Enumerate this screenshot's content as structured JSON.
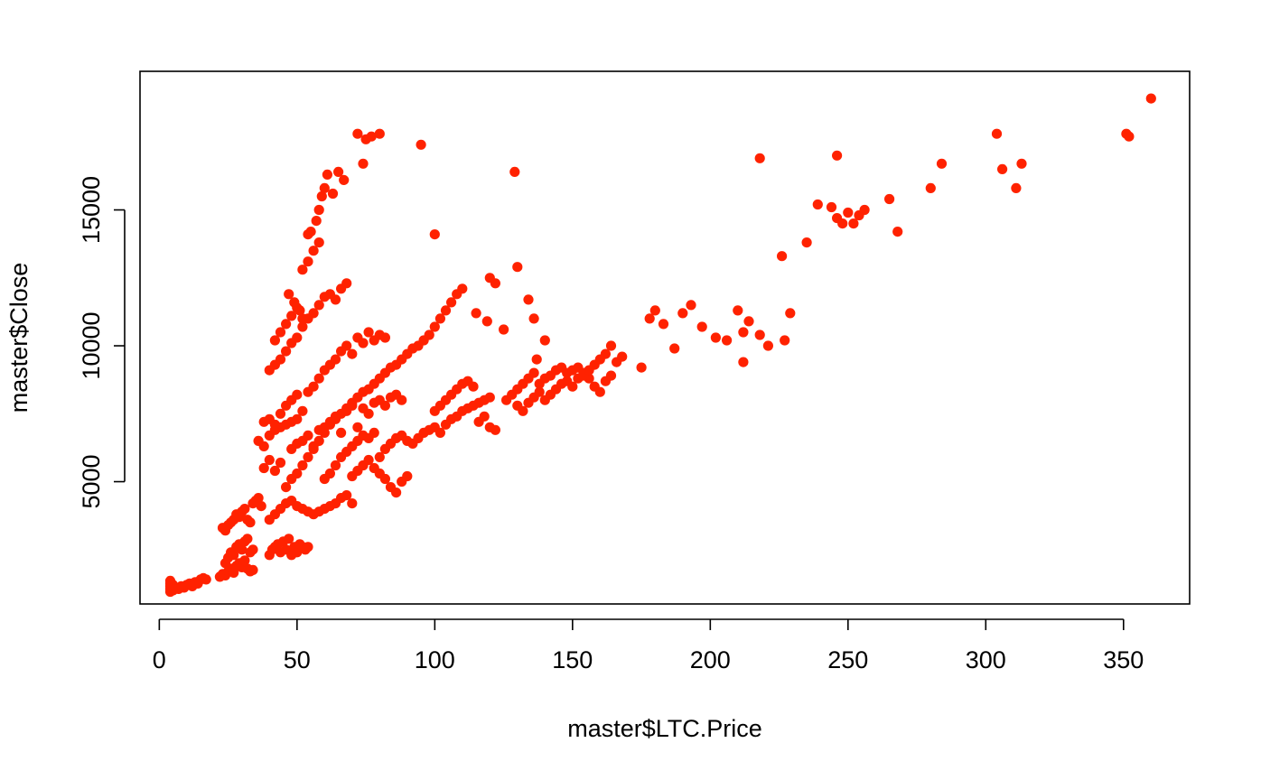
{
  "chart_data": {
    "type": "scatter",
    "title": "",
    "xlabel": "master$LTC.Price",
    "ylabel": "master$Close",
    "xlim": [
      -7,
      374
    ],
    "ylim": [
      500,
      20100
    ],
    "x_ticks": [
      0,
      50,
      100,
      150,
      200,
      250,
      300,
      350
    ],
    "y_ticks": [
      5000,
      10000,
      15000
    ],
    "x_tick_labels": [
      "0",
      "50",
      "100",
      "150",
      "200",
      "250",
      "300",
      "350"
    ],
    "y_tick_labels": [
      "5000",
      "10000",
      "15000"
    ],
    "grid": false,
    "legend": "none",
    "point_color": "#ff2200",
    "points": [
      [
        4,
        950
      ],
      [
        4,
        1050
      ],
      [
        4,
        1150
      ],
      [
        4,
        1250
      ],
      [
        4,
        1350
      ],
      [
        5,
        1000
      ],
      [
        5,
        1200
      ],
      [
        6,
        1100
      ],
      [
        7,
        1050
      ],
      [
        8,
        1150
      ],
      [
        9,
        1100
      ],
      [
        10,
        1200
      ],
      [
        11,
        1250
      ],
      [
        12,
        1150
      ],
      [
        13,
        1300
      ],
      [
        14,
        1250
      ],
      [
        15,
        1400
      ],
      [
        16,
        1450
      ],
      [
        17,
        1400
      ],
      [
        22,
        1500
      ],
      [
        23,
        1600
      ],
      [
        24,
        1550
      ],
      [
        25,
        1700
      ],
      [
        26,
        1800
      ],
      [
        27,
        1650
      ],
      [
        28,
        1900
      ],
      [
        29,
        2000
      ],
      [
        30,
        1850
      ],
      [
        31,
        2100
      ],
      [
        32,
        1800
      ],
      [
        33,
        1700
      ],
      [
        34,
        1750
      ],
      [
        24,
        2000
      ],
      [
        25,
        2200
      ],
      [
        26,
        2400
      ],
      [
        27,
        2300
      ],
      [
        28,
        2600
      ],
      [
        29,
        2700
      ],
      [
        30,
        2500
      ],
      [
        31,
        2800
      ],
      [
        32,
        2900
      ],
      [
        33,
        2400
      ],
      [
        34,
        2500
      ],
      [
        23,
        3300
      ],
      [
        24,
        3200
      ],
      [
        25,
        3400
      ],
      [
        26,
        3500
      ],
      [
        27,
        3600
      ],
      [
        28,
        3800
      ],
      [
        29,
        3700
      ],
      [
        30,
        3900
      ],
      [
        31,
        4000
      ],
      [
        32,
        3600
      ],
      [
        33,
        3500
      ],
      [
        34,
        4200
      ],
      [
        35,
        4300
      ],
      [
        36,
        4400
      ],
      [
        37,
        4100
      ],
      [
        38,
        5500
      ],
      [
        40,
        5800
      ],
      [
        42,
        5400
      ],
      [
        44,
        5700
      ],
      [
        36,
        6500
      ],
      [
        38,
        6300
      ],
      [
        40,
        6700
      ],
      [
        42,
        6900
      ],
      [
        44,
        7000
      ],
      [
        46,
        7100
      ],
      [
        48,
        7200
      ],
      [
        50,
        7300
      ],
      [
        38,
        7200
      ],
      [
        40,
        7300
      ],
      [
        42,
        7100
      ],
      [
        44,
        7500
      ],
      [
        46,
        7800
      ],
      [
        48,
        8000
      ],
      [
        50,
        8200
      ],
      [
        52,
        7600
      ],
      [
        54,
        8300
      ],
      [
        56,
        8500
      ],
      [
        58,
        8800
      ],
      [
        60,
        9100
      ],
      [
        62,
        9300
      ],
      [
        64,
        9500
      ],
      [
        66,
        9800
      ],
      [
        68,
        10000
      ],
      [
        70,
        9700
      ],
      [
        72,
        10300
      ],
      [
        74,
        10100
      ],
      [
        76,
        10500
      ],
      [
        78,
        10200
      ],
      [
        80,
        10400
      ],
      [
        82,
        10300
      ],
      [
        40,
        9100
      ],
      [
        42,
        9300
      ],
      [
        44,
        9500
      ],
      [
        46,
        9800
      ],
      [
        48,
        10100
      ],
      [
        50,
        10300
      ],
      [
        52,
        10700
      ],
      [
        54,
        11000
      ],
      [
        56,
        11200
      ],
      [
        58,
        11500
      ],
      [
        60,
        11800
      ],
      [
        62,
        11900
      ],
      [
        64,
        11700
      ],
      [
        66,
        12100
      ],
      [
        68,
        12300
      ],
      [
        42,
        10200
      ],
      [
        44,
        10500
      ],
      [
        46,
        10800
      ],
      [
        48,
        11100
      ],
      [
        50,
        11400
      ],
      [
        52,
        11000
      ],
      [
        47,
        11900
      ],
      [
        49,
        11600
      ],
      [
        51,
        11300
      ],
      [
        52,
        12800
      ],
      [
        54,
        13100
      ],
      [
        56,
        13500
      ],
      [
        58,
        13800
      ],
      [
        54,
        14100
      ],
      [
        55,
        14200
      ],
      [
        57,
        14600
      ],
      [
        58,
        15000
      ],
      [
        59,
        15500
      ],
      [
        60,
        15800
      ],
      [
        61,
        16300
      ],
      [
        63,
        15600
      ],
      [
        65,
        16400
      ],
      [
        67,
        16100
      ],
      [
        72,
        17800
      ],
      [
        74,
        16700
      ],
      [
        75,
        17600
      ],
      [
        77,
        17700
      ],
      [
        80,
        17800
      ],
      [
        95,
        17400
      ],
      [
        100,
        14100
      ],
      [
        129,
        16400
      ],
      [
        130,
        12900
      ],
      [
        40,
        2300
      ],
      [
        41,
        2500
      ],
      [
        42,
        2600
      ],
      [
        43,
        2700
      ],
      [
        44,
        2400
      ],
      [
        45,
        2800
      ],
      [
        46,
        2500
      ],
      [
        47,
        2900
      ],
      [
        48,
        2300
      ],
      [
        49,
        2600
      ],
      [
        50,
        2400
      ],
      [
        51,
        2700
      ],
      [
        52,
        2600
      ],
      [
        53,
        2500
      ],
      [
        54,
        2600
      ],
      [
        40,
        3600
      ],
      [
        42,
        3800
      ],
      [
        44,
        4000
      ],
      [
        46,
        4200
      ],
      [
        48,
        4300
      ],
      [
        50,
        4100
      ],
      [
        52,
        4000
      ],
      [
        54,
        3900
      ],
      [
        56,
        3800
      ],
      [
        58,
        3900
      ],
      [
        60,
        4000
      ],
      [
        62,
        4100
      ],
      [
        64,
        4200
      ],
      [
        66,
        4400
      ],
      [
        68,
        4500
      ],
      [
        70,
        4200
      ],
      [
        46,
        4800
      ],
      [
        48,
        5100
      ],
      [
        50,
        5300
      ],
      [
        52,
        5600
      ],
      [
        54,
        5900
      ],
      [
        56,
        6200
      ],
      [
        58,
        6500
      ],
      [
        60,
        6800
      ],
      [
        62,
        7100
      ],
      [
        64,
        7300
      ],
      [
        66,
        7500
      ],
      [
        68,
        7700
      ],
      [
        70,
        7900
      ],
      [
        72,
        8100
      ],
      [
        74,
        8300
      ],
      [
        76,
        8400
      ],
      [
        78,
        8600
      ],
      [
        80,
        8800
      ],
      [
        82,
        9000
      ],
      [
        84,
        9200
      ],
      [
        86,
        9300
      ],
      [
        88,
        9500
      ],
      [
        90,
        9700
      ],
      [
        92,
        9900
      ],
      [
        94,
        10000
      ],
      [
        96,
        10200
      ],
      [
        98,
        10400
      ],
      [
        100,
        10700
      ],
      [
        102,
        11000
      ],
      [
        104,
        11300
      ],
      [
        106,
        11600
      ],
      [
        108,
        11900
      ],
      [
        110,
        12100
      ],
      [
        48,
        6200
      ],
      [
        50,
        6400
      ],
      [
        52,
        6500
      ],
      [
        54,
        6700
      ],
      [
        56,
        6300
      ],
      [
        58,
        6900
      ],
      [
        60,
        7000
      ],
      [
        62,
        7200
      ],
      [
        64,
        7400
      ],
      [
        66,
        6800
      ],
      [
        68,
        7600
      ],
      [
        70,
        7800
      ],
      [
        72,
        7000
      ],
      [
        74,
        7700
      ],
      [
        76,
        7500
      ],
      [
        78,
        7900
      ],
      [
        80,
        8000
      ],
      [
        82,
        7800
      ],
      [
        84,
        8100
      ],
      [
        86,
        8200
      ],
      [
        88,
        8000
      ],
      [
        60,
        5100
      ],
      [
        62,
        5300
      ],
      [
        64,
        5600
      ],
      [
        66,
        5900
      ],
      [
        68,
        6100
      ],
      [
        70,
        6300
      ],
      [
        72,
        6500
      ],
      [
        74,
        6700
      ],
      [
        76,
        6600
      ],
      [
        78,
        6800
      ],
      [
        80,
        5900
      ],
      [
        82,
        6200
      ],
      [
        84,
        6400
      ],
      [
        86,
        6600
      ],
      [
        88,
        6700
      ],
      [
        90,
        6500
      ],
      [
        70,
        5200
      ],
      [
        72,
        5400
      ],
      [
        74,
        5600
      ],
      [
        76,
        5800
      ],
      [
        78,
        5500
      ],
      [
        80,
        5300
      ],
      [
        82,
        5100
      ],
      [
        84,
        4800
      ],
      [
        86,
        4600
      ],
      [
        88,
        5000
      ],
      [
        90,
        5200
      ],
      [
        92,
        6400
      ],
      [
        94,
        6600
      ],
      [
        96,
        6800
      ],
      [
        98,
        6900
      ],
      [
        100,
        7000
      ],
      [
        102,
        6800
      ],
      [
        104,
        7100
      ],
      [
        106,
        7300
      ],
      [
        108,
        7400
      ],
      [
        110,
        7600
      ],
      [
        112,
        7700
      ],
      [
        114,
        7800
      ],
      [
        116,
        7900
      ],
      [
        118,
        8000
      ],
      [
        120,
        8100
      ],
      [
        100,
        7600
      ],
      [
        102,
        7800
      ],
      [
        104,
        8000
      ],
      [
        106,
        8200
      ],
      [
        108,
        8400
      ],
      [
        110,
        8600
      ],
      [
        112,
        8700
      ],
      [
        114,
        8500
      ],
      [
        116,
        7200
      ],
      [
        118,
        7400
      ],
      [
        120,
        7000
      ],
      [
        122,
        6900
      ],
      [
        115,
        11200
      ],
      [
        119,
        10900
      ],
      [
        120,
        12500
      ],
      [
        122,
        12300
      ],
      [
        125,
        10600
      ],
      [
        126,
        8000
      ],
      [
        128,
        8200
      ],
      [
        130,
        8400
      ],
      [
        132,
        8600
      ],
      [
        134,
        8800
      ],
      [
        136,
        9000
      ],
      [
        138,
        8600
      ],
      [
        140,
        8800
      ],
      [
        142,
        8900
      ],
      [
        144,
        9100
      ],
      [
        146,
        9200
      ],
      [
        148,
        9000
      ],
      [
        150,
        9100
      ],
      [
        152,
        9200
      ],
      [
        154,
        9000
      ],
      [
        156,
        8800
      ],
      [
        158,
        9300
      ],
      [
        160,
        9500
      ],
      [
        162,
        9700
      ],
      [
        164,
        10000
      ],
      [
        166,
        9400
      ],
      [
        168,
        9600
      ],
      [
        130,
        7800
      ],
      [
        132,
        7600
      ],
      [
        134,
        7900
      ],
      [
        136,
        8100
      ],
      [
        138,
        8300
      ],
      [
        140,
        8000
      ],
      [
        142,
        8200
      ],
      [
        144,
        8400
      ],
      [
        146,
        8600
      ],
      [
        148,
        8700
      ],
      [
        150,
        8500
      ],
      [
        152,
        8800
      ],
      [
        154,
        8900
      ],
      [
        156,
        9100
      ],
      [
        158,
        8500
      ],
      [
        160,
        8300
      ],
      [
        162,
        8700
      ],
      [
        164,
        8900
      ],
      [
        134,
        11700
      ],
      [
        136,
        11000
      ],
      [
        140,
        10200
      ],
      [
        137,
        9500
      ],
      [
        175,
        9200
      ],
      [
        178,
        11000
      ],
      [
        180,
        11300
      ],
      [
        183,
        10800
      ],
      [
        187,
        9900
      ],
      [
        190,
        11200
      ],
      [
        193,
        11500
      ],
      [
        197,
        10700
      ],
      [
        202,
        10300
      ],
      [
        206,
        10200
      ],
      [
        210,
        11300
      ],
      [
        212,
        10500
      ],
      [
        214,
        10900
      ],
      [
        218,
        10400
      ],
      [
        221,
        10000
      ],
      [
        227,
        10200
      ],
      [
        212,
        9400
      ],
      [
        218,
        16900
      ],
      [
        226,
        13300
      ],
      [
        229,
        11200
      ],
      [
        235,
        13800
      ],
      [
        239,
        15200
      ],
      [
        244,
        15100
      ],
      [
        246,
        14700
      ],
      [
        248,
        14500
      ],
      [
        250,
        14900
      ],
      [
        252,
        14500
      ],
      [
        254,
        14800
      ],
      [
        256,
        15000
      ],
      [
        246,
        17000
      ],
      [
        265,
        15400
      ],
      [
        268,
        14200
      ],
      [
        280,
        15800
      ],
      [
        284,
        16700
      ],
      [
        304,
        17800
      ],
      [
        306,
        16500
      ],
      [
        311,
        15800
      ],
      [
        313,
        16700
      ],
      [
        351,
        17800
      ],
      [
        352,
        17700
      ],
      [
        360,
        19100
      ]
    ]
  }
}
